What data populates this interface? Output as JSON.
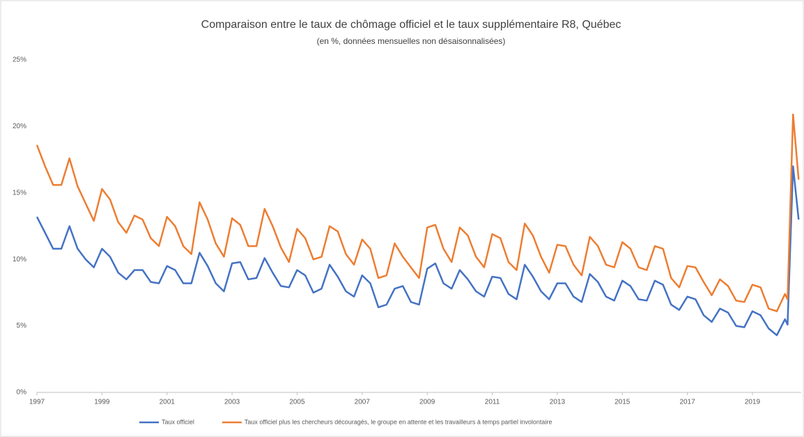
{
  "chart_data": {
    "type": "line",
    "title": "Comparaison entre le taux de chômage officiel et le taux supplémentaire R8, Québec",
    "subtitle": "(en %, données mensuelles non désaisonnalisées)",
    "x": [
      1997,
      1997.25,
      1997.5,
      1997.75,
      1998,
      1998.25,
      1998.5,
      1998.75,
      1999,
      1999.25,
      1999.5,
      1999.75,
      2000,
      2000.25,
      2000.5,
      2000.75,
      2001,
      2001.25,
      2001.5,
      2001.75,
      2002,
      2002.25,
      2002.5,
      2002.75,
      2003,
      2003.25,
      2003.5,
      2003.75,
      2004,
      2004.25,
      2004.5,
      2004.75,
      2005,
      2005.25,
      2005.5,
      2005.75,
      2006,
      2006.25,
      2006.5,
      2006.75,
      2007,
      2007.25,
      2007.5,
      2007.75,
      2008,
      2008.25,
      2008.5,
      2008.75,
      2009,
      2009.25,
      2009.5,
      2009.75,
      2010,
      2010.25,
      2010.5,
      2010.75,
      2011,
      2011.25,
      2011.5,
      2011.75,
      2012,
      2012.25,
      2012.5,
      2012.75,
      2013,
      2013.25,
      2013.5,
      2013.75,
      2014,
      2014.25,
      2014.5,
      2014.75,
      2015,
      2015.25,
      2015.5,
      2015.75,
      2016,
      2016.25,
      2016.5,
      2016.75,
      2017,
      2017.25,
      2017.5,
      2017.75,
      2018,
      2018.25,
      2018.5,
      2018.75,
      2019,
      2019.25,
      2019.5,
      2019.75,
      2020,
      2020.08,
      2020.25,
      2020.42
    ],
    "series": [
      {
        "name": "Taux officiel",
        "color": "#4472c4",
        "values": [
          13.2,
          12.0,
          10.8,
          10.8,
          12.5,
          10.8,
          10.0,
          9.4,
          10.8,
          10.2,
          9.0,
          8.5,
          9.2,
          9.2,
          8.3,
          8.2,
          9.5,
          9.2,
          8.2,
          8.2,
          10.5,
          9.5,
          8.2,
          7.6,
          9.7,
          9.8,
          8.5,
          8.6,
          10.1,
          9.0,
          8.0,
          7.9,
          9.2,
          8.8,
          7.5,
          7.8,
          9.6,
          8.7,
          7.6,
          7.2,
          8.8,
          8.2,
          6.4,
          6.6,
          7.8,
          8.0,
          6.8,
          6.6,
          9.3,
          9.7,
          8.2,
          7.8,
          9.2,
          8.5,
          7.6,
          7.2,
          8.7,
          8.6,
          7.4,
          7.0,
          9.6,
          8.7,
          7.6,
          7.0,
          8.2,
          8.2,
          7.2,
          6.8,
          8.9,
          8.3,
          7.2,
          6.9,
          8.4,
          8.0,
          7.0,
          6.9,
          8.4,
          8.1,
          6.6,
          6.2,
          7.2,
          7.0,
          5.8,
          5.3,
          6.3,
          6.0,
          5.0,
          4.9,
          6.1,
          5.8,
          4.8,
          4.3,
          5.5,
          5.1,
          17.0,
          13.0
        ]
      },
      {
        "name": "Taux officiel plus les chercheurs découragés, le groupe en attente et les travailleurs à temps partiel involontaire",
        "color": "#ed7d31",
        "values": [
          18.6,
          17.0,
          15.6,
          15.6,
          17.6,
          15.5,
          14.2,
          12.9,
          15.3,
          14.5,
          12.8,
          12.0,
          13.3,
          13.0,
          11.6,
          11.0,
          13.2,
          12.5,
          11.0,
          10.4,
          14.3,
          13.0,
          11.2,
          10.2,
          13.1,
          12.6,
          11.0,
          11.0,
          13.8,
          12.5,
          10.9,
          9.8,
          12.3,
          11.6,
          10.0,
          10.2,
          12.5,
          12.1,
          10.4,
          9.6,
          11.5,
          10.8,
          8.6,
          8.8,
          11.2,
          10.2,
          9.4,
          8.6,
          12.4,
          12.6,
          10.8,
          9.8,
          12.4,
          11.8,
          10.2,
          9.4,
          11.9,
          11.6,
          9.8,
          9.2,
          12.7,
          11.8,
          10.2,
          9.0,
          11.1,
          11.0,
          9.6,
          8.8,
          11.7,
          11.0,
          9.6,
          9.4,
          11.3,
          10.8,
          9.4,
          9.2,
          11.0,
          10.8,
          8.6,
          7.9,
          9.5,
          9.4,
          8.3,
          7.3,
          8.5,
          8.0,
          6.9,
          6.8,
          8.1,
          7.9,
          6.3,
          6.1,
          7.4,
          7.0,
          20.9,
          16.0
        ]
      }
    ],
    "xlim": [
      1997,
      2020.5
    ],
    "xticks": [
      1997,
      1999,
      2001,
      2003,
      2005,
      2007,
      2009,
      2011,
      2013,
      2015,
      2017,
      2019
    ],
    "ylim": [
      0,
      25
    ],
    "yticks": [
      {
        "value": 0,
        "label": "0%"
      },
      {
        "value": 5,
        "label": "5%"
      },
      {
        "value": 10,
        "label": "10%"
      },
      {
        "value": 15,
        "label": "15%"
      },
      {
        "value": 20,
        "label": "20%"
      },
      {
        "value": 25,
        "label": "25%"
      }
    ],
    "grid": false
  }
}
